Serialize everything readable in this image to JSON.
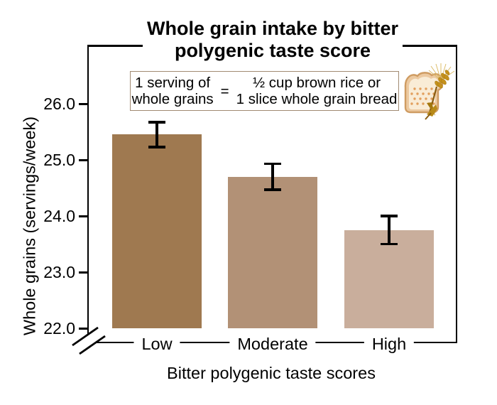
{
  "chart": {
    "title_line1": "Whole grain intake by bitter",
    "title_line2": "polygenic taste score"
  },
  "y_axis": {
    "label": "Whole grains (servings/week)",
    "ticks": [
      {
        "label": "26.0",
        "value": 26.0
      },
      {
        "label": "25.0",
        "value": 25.0
      },
      {
        "label": "24.0",
        "value": 24.0
      },
      {
        "label": "23.0",
        "value": 23.0
      },
      {
        "label": "22.0",
        "value": 22.0
      }
    ],
    "axis_break": true
  },
  "x_axis": {
    "label": "Bitter polygenic taste scores"
  },
  "legend_box": {
    "left_line1": "1 serving of",
    "left_line2": "whole grains",
    "equals": "=",
    "right_line1": "½ cup brown rice or",
    "right_line2": "1 slice whole grain bread"
  },
  "icons": {
    "bread_wheat": "bread-slice-with-wheat-stalk"
  },
  "colors": {
    "bar_low": "#9f7950",
    "bar_moderate": "#b29176",
    "bar_high": "#c9ae9c",
    "axis": "#000000",
    "legend_border": "#a18a72"
  },
  "chart_data": {
    "type": "bar",
    "title": "Whole grain intake by bitter polygenic taste score",
    "xlabel": "Bitter polygenic taste scores",
    "ylabel": "Whole grains (servings/week)",
    "categories": [
      "Low",
      "Moderate",
      "High"
    ],
    "values": [
      25.45,
      24.7,
      23.75
    ],
    "error_bars": [
      0.22,
      0.23,
      0.25
    ],
    "ylim": [
      22.0,
      27.0
    ],
    "yticks": [
      26.0,
      25.0,
      24.0,
      23.0,
      22.0
    ],
    "axis_break_at_origin": true,
    "bar_colors": [
      "#9f7950",
      "#b29176",
      "#c9ae9c"
    ],
    "grid": false,
    "legend_position": "none",
    "annotation": "1 serving of whole grains = ½ cup brown rice or 1 slice whole grain bread"
  }
}
